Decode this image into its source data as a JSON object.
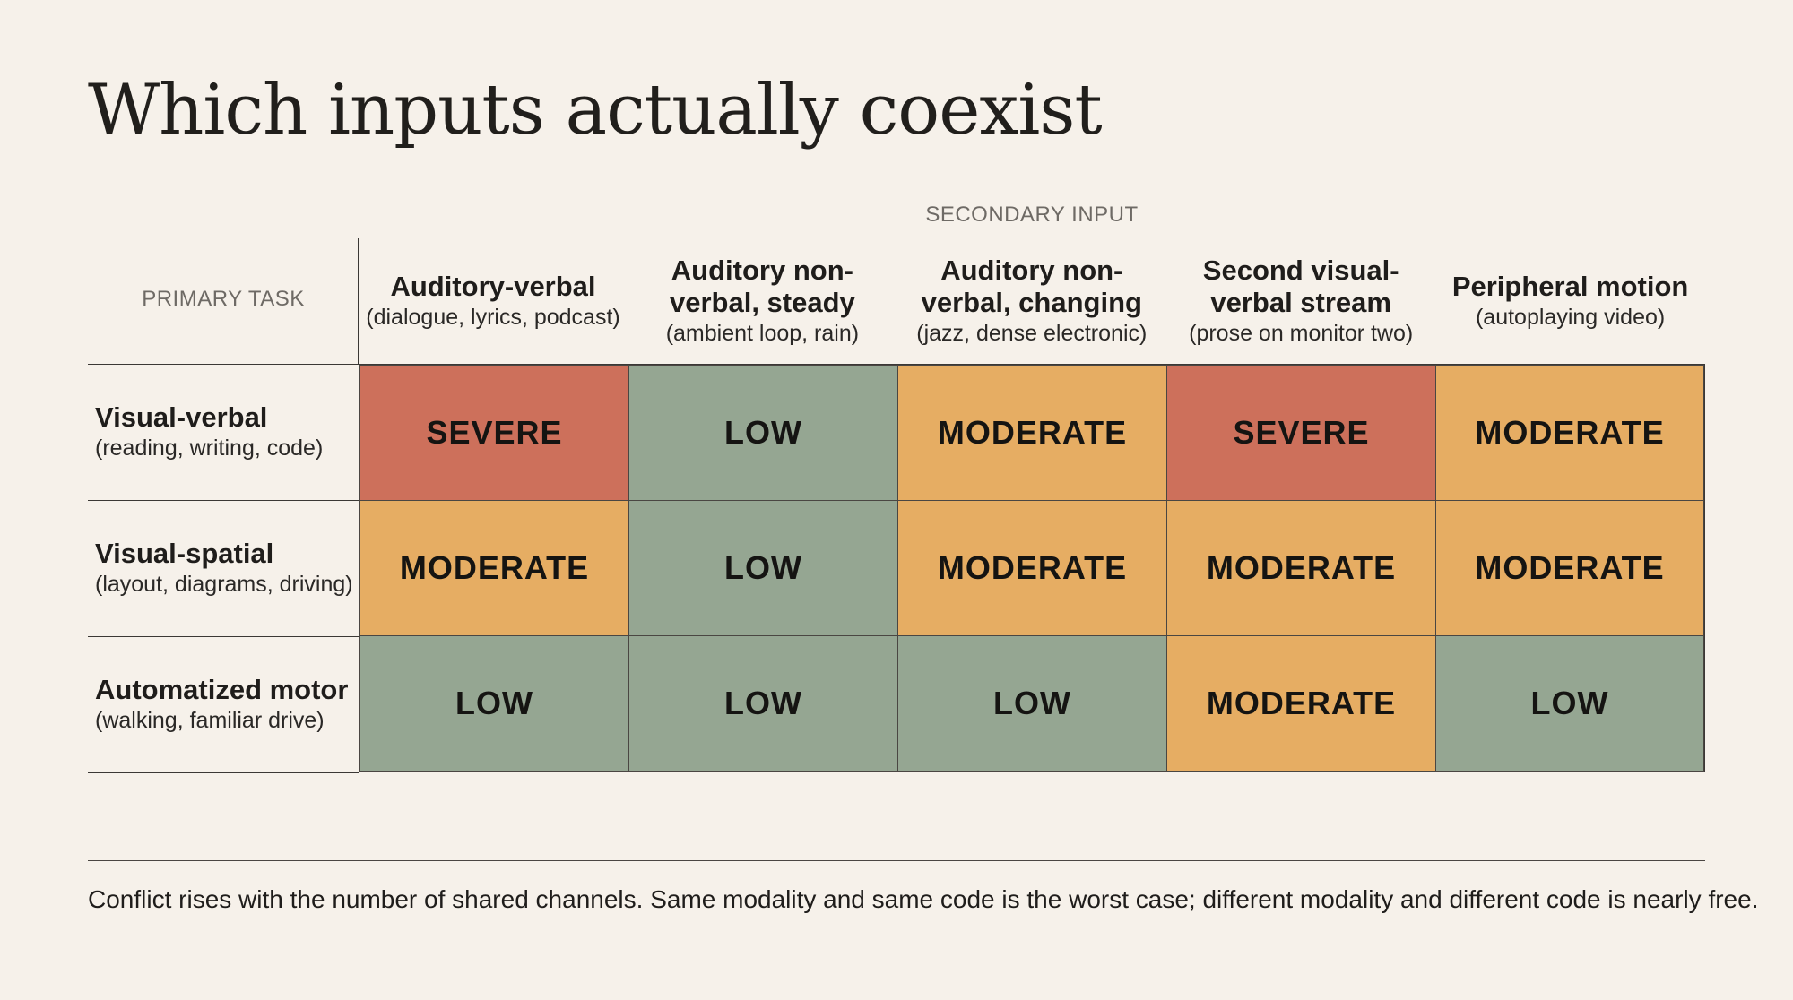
{
  "title": "Which inputs actually coexist",
  "secondary_input_label": "SECONDARY INPUT",
  "primary_task_label": "PRIMARY TASK",
  "columns": [
    {
      "title": "Auditory-verbal",
      "subtitle": "(dialogue, lyrics, podcast)"
    },
    {
      "title": "Auditory non-\nverbal, steady",
      "subtitle": "(ambient loop, rain)"
    },
    {
      "title": "Auditory non-\nverbal, changing",
      "subtitle": "(jazz, dense electronic)"
    },
    {
      "title": "Second visual-\nverbal stream",
      "subtitle": "(prose on monitor two)"
    },
    {
      "title": "Peripheral motion",
      "subtitle": "(autoplaying video)"
    }
  ],
  "rows": [
    {
      "title": "Visual-verbal",
      "subtitle": "(reading, writing, code)",
      "cells": [
        "SEVERE",
        "LOW",
        "MODERATE",
        "SEVERE",
        "MODERATE"
      ]
    },
    {
      "title": "Visual-spatial",
      "subtitle": "(layout, diagrams, driving)",
      "cells": [
        "MODERATE",
        "LOW",
        "MODERATE",
        "MODERATE",
        "MODERATE"
      ]
    },
    {
      "title": "Automatized motor",
      "subtitle": "(walking, familiar drive)",
      "cells": [
        "LOW",
        "LOW",
        "LOW",
        "MODERATE",
        "LOW"
      ]
    }
  ],
  "level_colors": {
    "SEVERE": "#cd705b",
    "MODERATE": "#e6ad63",
    "LOW": "#95a692"
  },
  "footnote": "Conflict rises with the number of shared channels. Same modality and same code is the worst case; different modality and different code is nearly free."
}
